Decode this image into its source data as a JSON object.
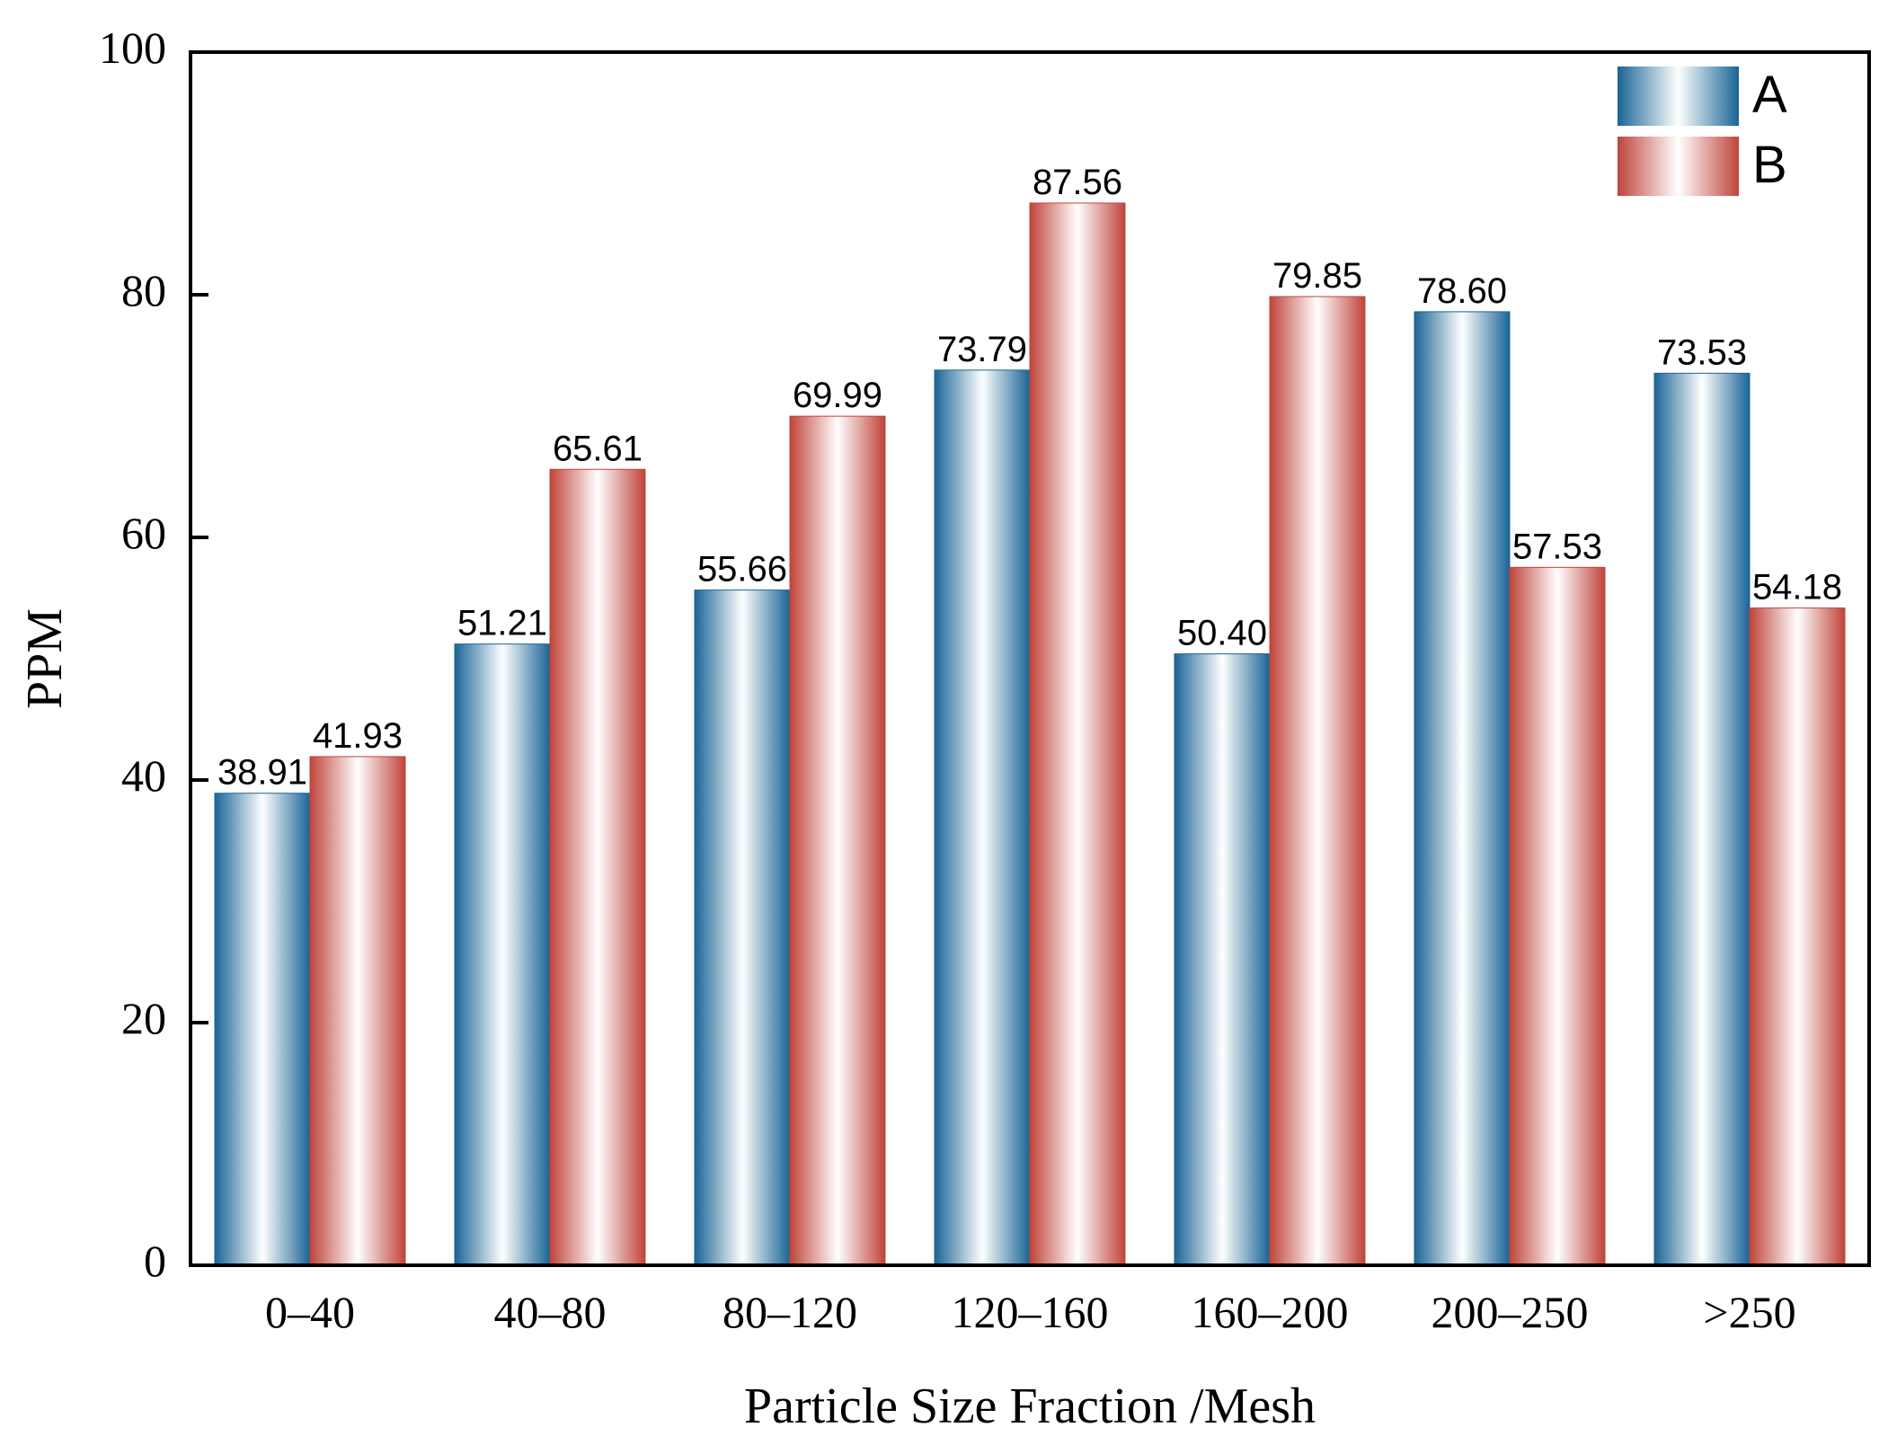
{
  "chart_data": {
    "type": "bar",
    "title": "",
    "xlabel": "Particle Size Fraction /Mesh",
    "ylabel": "PPM",
    "ylim": [
      0,
      100
    ],
    "yticks": [
      0,
      20,
      40,
      60,
      80,
      100
    ],
    "ytick_labels": [
      "0",
      "20",
      "40",
      "60",
      "80",
      "100"
    ],
    "categories": [
      "0–40",
      "40–80",
      "80–120",
      "120–160",
      "160–200",
      "200–250",
      ">250"
    ],
    "series": [
      {
        "name": "A",
        "color": "#1a6496",
        "values": [
          38.91,
          51.21,
          55.66,
          73.79,
          50.4,
          78.6,
          73.53
        ],
        "labels": [
          "38.91",
          "51.21",
          "55.66",
          "73.79",
          "50.40",
          "78.60",
          "73.53"
        ]
      },
      {
        "name": "B",
        "color": "#c0443a",
        "values": [
          41.93,
          65.61,
          69.99,
          87.56,
          79.85,
          57.53,
          54.18
        ],
        "labels": [
          "41.93",
          "65.61",
          "69.99",
          "87.56",
          "79.85",
          "57.53",
          "54.18"
        ]
      }
    ],
    "legend": "top-right",
    "grid": false
  }
}
